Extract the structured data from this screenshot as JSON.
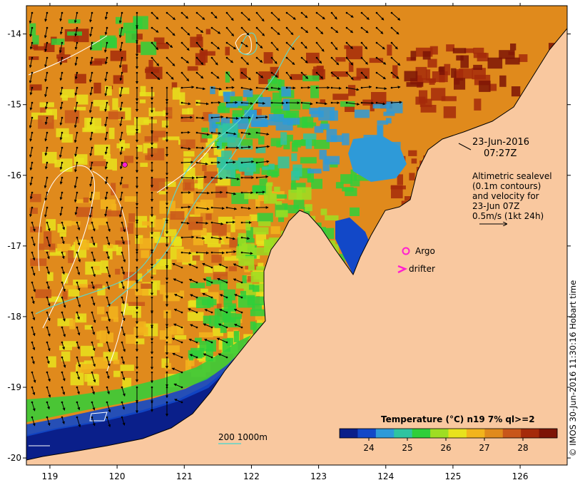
{
  "map": {
    "lon_ticks": [
      "119",
      "120",
      "121",
      "122",
      "123",
      "124",
      "125",
      "126"
    ],
    "lat_ticks": [
      "-14",
      "-15",
      "-16",
      "-17",
      "-18",
      "-19",
      "-20"
    ],
    "lon_range": [
      118.65,
      126.7
    ],
    "lat_range": [
      -13.6,
      -20.1
    ],
    "colors": {
      "land": "#f9c89f",
      "deep_blue": "#0a1f8a",
      "cyan": "#2e9ad8",
      "green": "#2fcf3a",
      "yellow": "#e8e21c",
      "orange": "#e08a1c",
      "brown": "#a52a0a",
      "contour": "#5fd6c8"
    }
  },
  "annotation": {
    "date": "23-Jun-2016",
    "time": "07:27Z",
    "alt_line1": "Altimetric sealevel",
    "alt_line2": "(0.1m contours)",
    "alt_line3": "and velocity for",
    "alt_line4": "23-Jun 07Z",
    "alt_line5": "0.5m/s (1kt 24h)"
  },
  "legend": {
    "argo": "Argo",
    "drifter": "drifter",
    "isobath_label": "200  1000m"
  },
  "colorbar": {
    "title": "Temperature (°C) n19 7% ql>=2",
    "ticks": [
      "24",
      "25",
      "26",
      "27",
      "28"
    ],
    "colors": [
      "#0a1f8a",
      "#1248c8",
      "#2e9ad8",
      "#2fc4a0",
      "#2fcf3a",
      "#9ede22",
      "#e8e21c",
      "#f2b41c",
      "#e08a1c",
      "#c8561a",
      "#a52a0a",
      "#7d1406"
    ]
  },
  "credit": "© IMOS 30-Jun-2016 11:30:16 Hobart time"
}
